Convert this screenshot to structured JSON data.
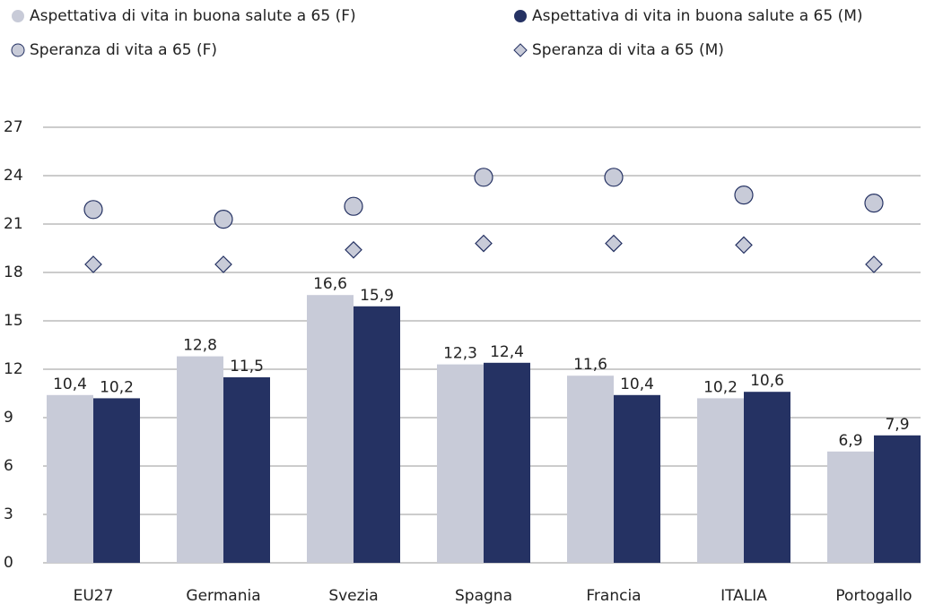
{
  "chart_data": {
    "type": "bar",
    "categories": [
      "EU27",
      "Germania",
      "Svezia",
      "Spagna",
      "Francia",
      "ITALIA",
      "Portogallo"
    ],
    "series": [
      {
        "name": "Aspettativa di vita in buona salute a 65 (F)",
        "type": "bar",
        "color": "#c8cbd8",
        "values": [
          10.4,
          12.8,
          16.6,
          12.3,
          11.6,
          10.2,
          6.9
        ],
        "value_labels": [
          "10,4",
          "12,8",
          "16,6",
          "12,3",
          "11,6",
          "10,2",
          "6,9"
        ]
      },
      {
        "name": "Aspettativa di vita in buona salute a 65 (M)",
        "type": "bar",
        "color": "#253263",
        "values": [
          10.2,
          11.5,
          15.9,
          12.4,
          10.4,
          10.6,
          7.9
        ],
        "value_labels": [
          "10,2",
          "11,5",
          "15,9",
          "12,4",
          "10,4",
          "10,6",
          "7,9"
        ]
      },
      {
        "name": "Speranza di vita a 65 (F)",
        "type": "scatter",
        "marker": "circle",
        "color": "#c8cbd8",
        "values": [
          21.9,
          21.3,
          22.1,
          23.9,
          23.9,
          22.8,
          22.3
        ]
      },
      {
        "name": "Speranza di vita a 65 (M)",
        "type": "scatter",
        "marker": "diamond",
        "color": "#c8cbd8",
        "values": [
          18.5,
          18.5,
          19.4,
          19.8,
          19.8,
          19.7,
          18.5
        ]
      }
    ],
    "ylim": [
      0,
      27
    ],
    "yticks": [
      0,
      3,
      6,
      9,
      12,
      15,
      18,
      21,
      24,
      27
    ],
    "grid": true
  }
}
